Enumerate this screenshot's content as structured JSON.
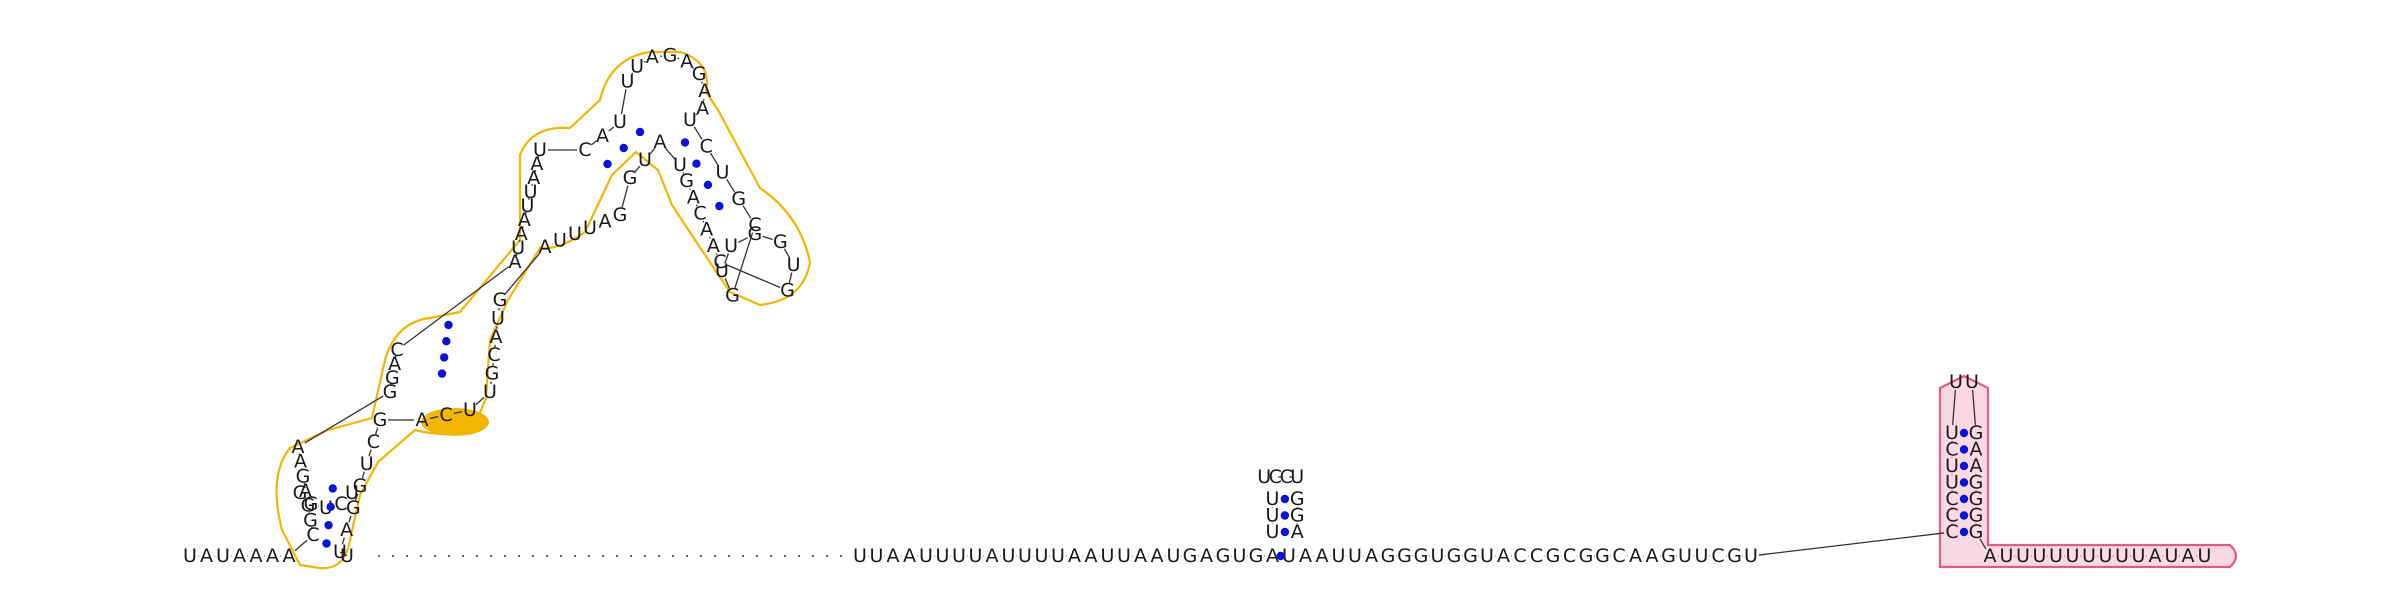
{
  "colors": {
    "text": "#1a1a1a",
    "backbone": "#333333",
    "pair_dot": "#0a14d8",
    "highlight1_stroke": "#f2b705",
    "highlight1_fill": "#ffffff",
    "highlight_solid": "#f2b705",
    "highlight2_stroke": "#e05a87",
    "highlight2_fill": "#fbd9e4"
  },
  "sequence": {
    "prefix": "UAUAAAA",
    "bottom_end": "U",
    "dotted_gap_units": 29,
    "mid_run_a": "UUAAUUUUAUUUUAAUUAAUGAGUGA",
    "mid_run_b": "UAAUUAGGGUGGUACCGCGGCAAGUUCGU",
    "tail": "AUUUUUUUUUAUAU"
  },
  "hairpin_left": {
    "stem1_left": "CGGAGAA",
    "stem1_right": "UAGGUCG",
    "loop1": "GGUCU",
    "bulge_right": "ACU",
    "stem2_left": "GGAC",
    "stem2_right": "UGCAUG",
    "interior_left": "AUAAUUAAU",
    "interior_right": "AUUUAG",
    "stem3_left": "CAU",
    "stem3_right": "GUA",
    "apical_left": "UUAGAGAA",
    "branch_left": "UGACAAC",
    "branch_right": "UCUGC",
    "branch_loop": "GUUGGUG"
  },
  "hairpin_mid": {
    "left": "UUU",
    "loop": "UCCU",
    "right": "GGA"
  },
  "hairpin_right": {
    "left": "CCCUUCU",
    "loop": "UU",
    "right": "GAAGGGG"
  }
}
